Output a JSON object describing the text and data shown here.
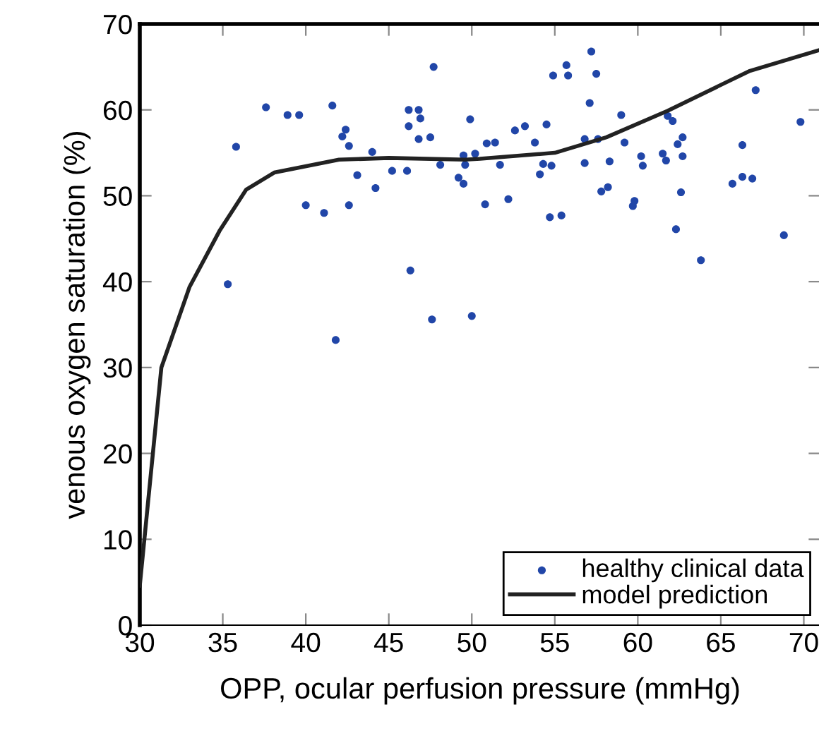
{
  "chart_data": {
    "type": "scatter",
    "xlabel": "OPP, ocular perfusion pressure (mmHg)",
    "ylabel": "venous oxygen saturation (%)",
    "xlim": [
      30,
      71
    ],
    "ylim": [
      0,
      70
    ],
    "xticks": [
      30,
      35,
      40,
      45,
      50,
      55,
      60,
      65,
      70
    ],
    "yticks": [
      0,
      10,
      20,
      30,
      40,
      50,
      60,
      70
    ],
    "grid": false,
    "legend": "bottom right",
    "series": [
      {
        "name": "healthy clinical data",
        "marker": "circle",
        "color": "#2146a8",
        "x": [
          47.7,
          37.6,
          38.9,
          39.6,
          41.6,
          46.2,
          46.8,
          46.9,
          49.9,
          42.4,
          42.2,
          42.6,
          46.2,
          46.8,
          47.5,
          35.8,
          44.0,
          49.5,
          50.2,
          48.1,
          49.6,
          43.1,
          45.2,
          46.1,
          49.2,
          49.5,
          44.2,
          40.0,
          41.1,
          42.6,
          46.3,
          35.3,
          47.6,
          50.0,
          41.8,
          50.8,
          50.9,
          51.4,
          51.7,
          52.2,
          52.6,
          53.2,
          53.8,
          54.5,
          54.3,
          54.8,
          54.1,
          54.7,
          55.4,
          54.9,
          55.7,
          55.8,
          57.2,
          57.5,
          57.1,
          56.8,
          57.6,
          56.8,
          57.8,
          58.2,
          58.3,
          59.0,
          59.2,
          59.7,
          59.8,
          60.2,
          60.3,
          61.5,
          61.7,
          61.8,
          62.1,
          62.4,
          62.7,
          62.7,
          62.6,
          62.3,
          63.8,
          65.7,
          66.3,
          66.9,
          66.3,
          67.1,
          68.8,
          69.8
        ],
        "values": [
          65.0,
          60.3,
          59.4,
          59.4,
          60.5,
          60.0,
          60.0,
          59.0,
          58.9,
          57.7,
          56.9,
          55.8,
          58.1,
          56.6,
          56.8,
          55.7,
          55.1,
          54.7,
          54.9,
          53.6,
          53.6,
          52.4,
          52.9,
          52.9,
          52.1,
          51.4,
          50.9,
          48.9,
          48.0,
          48.9,
          41.3,
          39.7,
          35.6,
          36.0,
          33.2,
          49.0,
          56.1,
          56.2,
          53.6,
          49.6,
          57.6,
          58.1,
          56.2,
          58.3,
          53.7,
          53.5,
          52.5,
          47.5,
          47.7,
          64.0,
          65.2,
          64.0,
          66.8,
          64.2,
          60.8,
          56.6,
          56.6,
          53.8,
          50.5,
          51.0,
          54.0,
          59.4,
          56.2,
          48.8,
          49.4,
          54.6,
          53.5,
          54.9,
          54.1,
          59.3,
          58.7,
          56.0,
          56.8,
          54.6,
          50.4,
          46.1,
          42.5,
          51.4,
          52.2,
          52.0,
          55.9,
          62.3,
          45.4,
          58.6
        ]
      },
      {
        "name": "model prediction",
        "type": "line",
        "marker": "none",
        "line_style": "solid",
        "color": "#222222",
        "x": [
          30.0,
          31.3,
          33.0,
          34.8,
          36.4,
          38.1,
          42.0,
          45.0,
          49.6,
          50.5,
          55.0,
          58.1,
          61.8,
          66.7,
          71.0
        ],
        "values": [
          4.6,
          30.0,
          39.4,
          45.9,
          50.7,
          52.7,
          54.2,
          54.4,
          54.2,
          54.3,
          55.0,
          56.8,
          59.9,
          64.5,
          67.0
        ]
      }
    ]
  }
}
